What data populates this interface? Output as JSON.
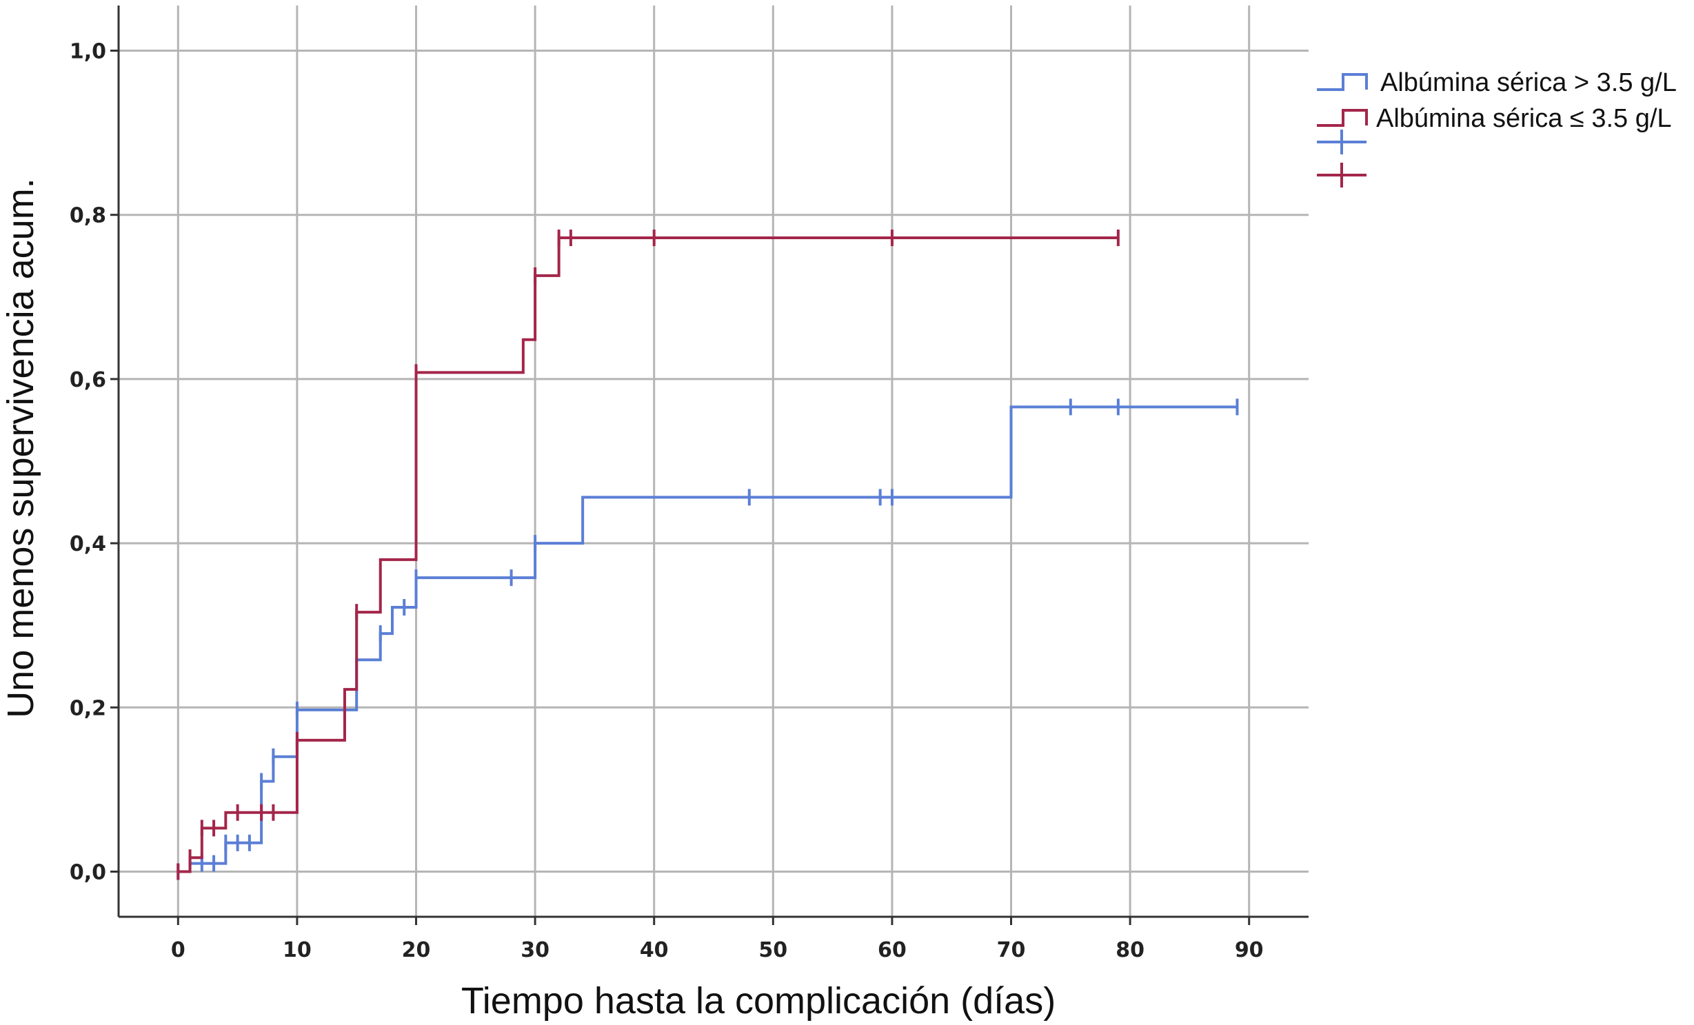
{
  "chart_data": {
    "type": "line",
    "step": true,
    "xlabel": "Tiempo hasta la complicación (días)",
    "ylabel": "Uno menos supervivencia acum.",
    "xlim": [
      -5,
      95
    ],
    "ylim": [
      -0.055,
      1.055
    ],
    "xticks": [
      0,
      10,
      20,
      30,
      40,
      50,
      60,
      70,
      80,
      90
    ],
    "xtick_labels": [
      "0",
      "10",
      "20",
      "30",
      "40",
      "50",
      "60",
      "70",
      "80",
      "90"
    ],
    "yticks": [
      0,
      0.2,
      0.4,
      0.6,
      0.8,
      1.0
    ],
    "ytick_labels": [
      "0,0",
      "0,2",
      "0,4",
      "0,6",
      "0,8",
      "1,0"
    ],
    "grid": true,
    "legend_position": "top-right, outside plot",
    "series": [
      {
        "name": "Albúmina sérica > 3.5 g/L",
        "color": "#5b7fd6",
        "steps": [
          [
            0,
            0.0
          ],
          [
            1,
            0.01
          ],
          [
            4,
            0.035
          ],
          [
            7,
            0.11
          ],
          [
            8,
            0.14
          ],
          [
            10,
            0.197
          ],
          [
            15,
            0.258
          ],
          [
            17,
            0.29
          ],
          [
            18,
            0.322
          ],
          [
            20,
            0.358
          ],
          [
            30,
            0.4
          ],
          [
            34,
            0.456
          ],
          [
            70,
            0.566
          ],
          [
            89,
            0.566
          ]
        ],
        "censored": [
          [
            0,
            0.0
          ],
          [
            2,
            0.01
          ],
          [
            3,
            0.01
          ],
          [
            4,
            0.035
          ],
          [
            5,
            0.035
          ],
          [
            6,
            0.035
          ],
          [
            7,
            0.11
          ],
          [
            8,
            0.14
          ],
          [
            10,
            0.197
          ],
          [
            17,
            0.29
          ],
          [
            19,
            0.322
          ],
          [
            20,
            0.358
          ],
          [
            28,
            0.358
          ],
          [
            30,
            0.4
          ],
          [
            48,
            0.456
          ],
          [
            59,
            0.456
          ],
          [
            60,
            0.456
          ],
          [
            75,
            0.566
          ],
          [
            79,
            0.566
          ],
          [
            89,
            0.566
          ]
        ]
      },
      {
        "name": "Albúmina sérica ≤ 3.5 g/L",
        "color": "#a3264a",
        "steps": [
          [
            0,
            0.0
          ],
          [
            1,
            0.017
          ],
          [
            2,
            0.053
          ],
          [
            4,
            0.072
          ],
          [
            10,
            0.16
          ],
          [
            14,
            0.222
          ],
          [
            15,
            0.316
          ],
          [
            17,
            0.38
          ],
          [
            20,
            0.608
          ],
          [
            29,
            0.648
          ],
          [
            30,
            0.726
          ],
          [
            32,
            0.772
          ],
          [
            79,
            0.772
          ]
        ],
        "censored": [
          [
            0,
            0.0
          ],
          [
            1,
            0.017
          ],
          [
            2,
            0.053
          ],
          [
            3,
            0.053
          ],
          [
            5,
            0.072
          ],
          [
            7,
            0.072
          ],
          [
            8,
            0.072
          ],
          [
            10,
            0.16
          ],
          [
            15,
            0.316
          ],
          [
            20,
            0.608
          ],
          [
            30,
            0.726
          ],
          [
            32,
            0.772
          ],
          [
            33,
            0.772
          ],
          [
            40,
            0.772
          ],
          [
            60,
            0.772
          ],
          [
            79,
            0.772
          ]
        ]
      }
    ]
  }
}
